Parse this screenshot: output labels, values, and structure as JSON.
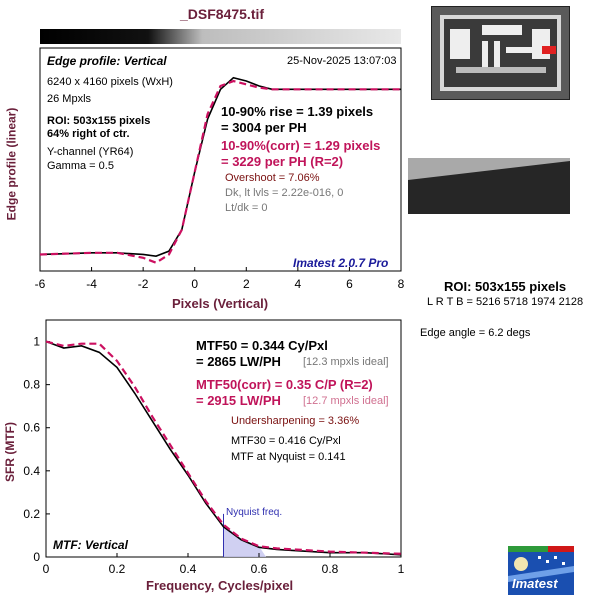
{
  "header": {
    "file_title": "_DSF8475.tif"
  },
  "edge_panel": {
    "title": "Edge profile: Vertical",
    "timestamp": "25-Nov-2025 13:07:03",
    "info": [
      "6240 x 4160 pixels (WxH)",
      "26 Mpxls"
    ],
    "roi_bold": [
      "ROI: 503x155 pixels",
      "64% right of ctr."
    ],
    "channel": [
      "Y-channel  (YR64)",
      "Gamma = 0.5"
    ],
    "rise_1": "10-90% rise = 1.39 pixels",
    "rise_2": "= 3004 per PH",
    "corr_1": "10-90%(corr) = 1.29 pixels",
    "corr_2": "= 3229 per PH  (R=2)",
    "overshoot": "Overshoot = 7.06%",
    "dk": "Dk, lt lvls = 2.22e-016, 0",
    "ltdk": "Lt/dk = 0",
    "version": "Imatest 2.0.7 Pro",
    "ylabel": "Edge profile (linear)",
    "xlabel": "Pixels (Vertical)"
  },
  "mtf_panel": {
    "title": "MTF: Vertical",
    "mtf50_1": "MTF50 = 0.344 Cy/Pxl",
    "mtf50_2": "= 2865 LW/PH",
    "ideal_1": "[12.3 mpxls ideal]",
    "corr_1": "MTF50(corr) = 0.35 C/P  (R=2)",
    "corr_2": "= 2915 LW/PH",
    "ideal_2": "[12.7 mpxls ideal]",
    "undersharp": "Undersharpening = 3.36%",
    "mtf30": "MTF30 = 0.416 Cy/Pxl",
    "nyq_mtf": "MTF at Nyquist = 0.141",
    "nyquist_label": "Nyquist freq.",
    "ylabel": "SFR (MTF)",
    "xlabel": "Frequency, Cycles/pixel"
  },
  "right_panel": {
    "roi": "ROI: 503x155 pixels",
    "lrtb": "L R  T B = 5216 5718  1974 2128",
    "edge_angle": "Edge angle = 6.2 degs",
    "logo_text": "Imatest"
  },
  "colors": {
    "measured": "#000000",
    "corrected": "#cc1060",
    "nyquist_fill": "#c8c8f0",
    "axis_label": "#6a1f3a"
  },
  "chart_data": [
    {
      "type": "line",
      "title": "Edge profile: Vertical",
      "xlabel": "Pixels (Vertical)",
      "ylabel": "Edge profile (linear)",
      "xlim": [
        -6,
        8
      ],
      "xticks": [
        -6,
        -4,
        -2,
        0,
        2,
        4,
        6,
        8
      ],
      "ylim": [
        -0.1,
        1.25
      ],
      "series": [
        {
          "name": "measured",
          "x": [
            -6,
            -5,
            -4,
            -3,
            -2,
            -1.5,
            -1,
            -0.5,
            0,
            0.5,
            1,
            1.5,
            2,
            2.5,
            3,
            4,
            5,
            6,
            7,
            8
          ],
          "y": [
            0,
            0.005,
            0.01,
            0.01,
            0.0,
            -0.01,
            0.02,
            0.15,
            0.5,
            0.82,
            1.0,
            1.07,
            1.05,
            1.02,
            1.0,
            1.0,
            1.0,
            1.0,
            1.0,
            1.0
          ]
        },
        {
          "name": "corrected",
          "x": [
            -6,
            -5,
            -4,
            -3,
            -2,
            -1.5,
            -1,
            -0.5,
            0,
            0.5,
            1,
            1.5,
            2,
            2.5,
            3,
            4,
            5,
            6,
            7,
            8
          ],
          "y": [
            0,
            0.005,
            0.01,
            0.01,
            -0.02,
            -0.05,
            0.0,
            0.15,
            0.5,
            0.85,
            1.02,
            1.05,
            1.03,
            1.01,
            1.0,
            1.0,
            1.0,
            1.0,
            1.0,
            1.0
          ]
        }
      ]
    },
    {
      "type": "line",
      "title": "MTF: Vertical",
      "xlabel": "Frequency, Cycles/pixel",
      "ylabel": "SFR (MTF)",
      "xlim": [
        0,
        1
      ],
      "xticks": [
        0,
        0.2,
        0.4,
        0.6,
        0.8,
        1
      ],
      "ylim": [
        0,
        1.1
      ],
      "yticks": [
        0,
        0.2,
        0.4,
        0.6,
        0.8,
        1
      ],
      "nyquist": 0.5,
      "series": [
        {
          "name": "measured",
          "x": [
            0,
            0.05,
            0.1,
            0.15,
            0.2,
            0.25,
            0.3,
            0.35,
            0.4,
            0.45,
            0.5,
            0.55,
            0.6,
            0.65,
            0.7,
            0.8,
            0.9,
            1.0
          ],
          "y": [
            1.0,
            0.97,
            0.98,
            0.95,
            0.88,
            0.76,
            0.63,
            0.5,
            0.38,
            0.25,
            0.14,
            0.08,
            0.045,
            0.035,
            0.03,
            0.02,
            0.02,
            0.01
          ]
        },
        {
          "name": "corrected",
          "x": [
            0,
            0.05,
            0.1,
            0.15,
            0.2,
            0.25,
            0.3,
            0.35,
            0.4,
            0.45,
            0.5,
            0.55,
            0.6,
            0.65,
            0.7,
            0.8,
            0.9,
            1.0
          ],
          "y": [
            1.0,
            0.98,
            0.99,
            0.99,
            0.91,
            0.79,
            0.65,
            0.52,
            0.39,
            0.26,
            0.15,
            0.085,
            0.05,
            0.04,
            0.035,
            0.025,
            0.02,
            0.015
          ]
        }
      ]
    }
  ]
}
